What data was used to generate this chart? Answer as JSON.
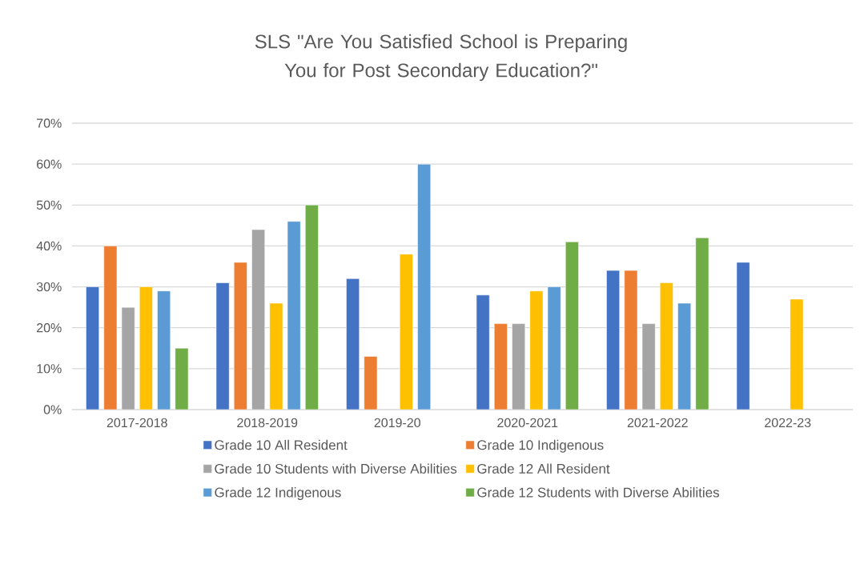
{
  "chart_data": {
    "type": "bar",
    "title": "SLS \"Are You Satisfied School is Preparing You for Post Secondary Education?\"",
    "categories": [
      "2017-2018",
      "2018-2019",
      "2019-20",
      "2020-2021",
      "2021-2022",
      "2022-23"
    ],
    "series": [
      {
        "name": "Grade 10 All Resident",
        "color": "#4472c4",
        "values": [
          30,
          31,
          32,
          28,
          34,
          36
        ]
      },
      {
        "name": "Grade 10 Indigenous",
        "color": "#ed7d31",
        "values": [
          40,
          36,
          13,
          21,
          34,
          null
        ]
      },
      {
        "name": "Grade 10 Students with Diverse Abilities",
        "color": "#a5a5a5",
        "values": [
          25,
          44,
          null,
          21,
          21,
          null
        ]
      },
      {
        "name": "Grade 12 All Resident",
        "color": "#ffc000",
        "values": [
          30,
          26,
          38,
          29,
          31,
          27
        ]
      },
      {
        "name": "Grade 12 Indigenous",
        "color": "#5b9bd5",
        "values": [
          29,
          46,
          60,
          30,
          26,
          null
        ]
      },
      {
        "name": "Grade 12 Students with Diverse Abilities",
        "color": "#70ad47",
        "values": [
          15,
          50,
          null,
          41,
          42,
          null
        ]
      }
    ],
    "ylim": [
      0,
      70
    ],
    "yticks": [
      {
        "value": 0,
        "label": "0%"
      },
      {
        "value": 10,
        "label": "10%"
      },
      {
        "value": 20,
        "label": "20%"
      },
      {
        "value": 30,
        "label": "30%"
      },
      {
        "value": 40,
        "label": "40%"
      },
      {
        "value": 50,
        "label": "50%"
      },
      {
        "value": 60,
        "label": "60%"
      },
      {
        "value": 70,
        "label": "70%"
      }
    ],
    "grid": "y",
    "legend": "bottom"
  }
}
